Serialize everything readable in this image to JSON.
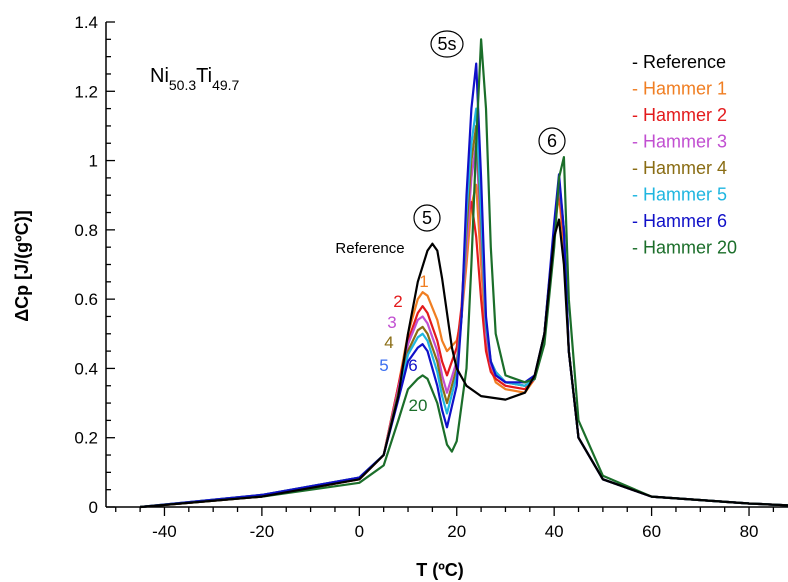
{
  "chart_data": {
    "type": "line",
    "title": "",
    "composition": {
      "main1": "Ni",
      "sub1": "50.3",
      "main2": "Ti",
      "sub2": "49.7"
    },
    "xlabel": "T (ºC)",
    "ylabel": "ΔCp  [J/(gºC)]",
    "xlim": [
      -52,
      88
    ],
    "ylim": [
      0,
      1.4
    ],
    "xticks": [
      -40,
      -20,
      0,
      20,
      40,
      60,
      80
    ],
    "yticks": [
      0,
      0.2,
      0.4,
      0.6,
      0.8,
      1,
      1.2,
      1.4
    ],
    "xtick_labels": [
      "-40",
      "-20",
      "0",
      "20",
      "40",
      "60",
      "80"
    ],
    "ytick_labels": [
      "0",
      "0.2",
      "0.4",
      "0.6",
      "0.8",
      "1",
      "1.2",
      "1.4"
    ],
    "grid": false,
    "legend_position": "top-right",
    "series": [
      {
        "name": "Reference",
        "color": "#000000",
        "x": [
          -45,
          -20,
          0,
          5,
          8,
          10,
          12,
          14,
          15,
          16,
          17,
          18,
          19,
          20,
          22,
          25,
          30,
          34,
          36,
          38,
          40,
          41,
          42,
          43,
          45,
          50,
          60,
          80,
          88
        ],
        "y": [
          0,
          0.03,
          0.08,
          0.15,
          0.32,
          0.5,
          0.65,
          0.74,
          0.76,
          0.74,
          0.66,
          0.56,
          0.46,
          0.4,
          0.35,
          0.32,
          0.31,
          0.33,
          0.38,
          0.5,
          0.78,
          0.83,
          0.7,
          0.45,
          0.2,
          0.08,
          0.03,
          0.01,
          0.005
        ]
      },
      {
        "name": "Hammer 1",
        "color": "#f07e22",
        "x": [
          -45,
          -20,
          0,
          5,
          8,
          10,
          12,
          13,
          14,
          16,
          17,
          18,
          20,
          21,
          22,
          23,
          24,
          25,
          26,
          27,
          28,
          30,
          34,
          36,
          38,
          40,
          41,
          42,
          43,
          45,
          50,
          60,
          80,
          88
        ],
        "y": [
          0,
          0.03,
          0.08,
          0.15,
          0.35,
          0.5,
          0.6,
          0.62,
          0.61,
          0.54,
          0.48,
          0.45,
          0.48,
          0.55,
          0.7,
          0.87,
          0.93,
          0.7,
          0.48,
          0.4,
          0.36,
          0.34,
          0.33,
          0.37,
          0.5,
          0.8,
          0.9,
          0.75,
          0.45,
          0.2,
          0.08,
          0.03,
          0.01,
          0.005
        ]
      },
      {
        "name": "Hammer 2",
        "color": "#e31a1c",
        "x": [
          -45,
          -20,
          0,
          5,
          8,
          10,
          12,
          13,
          14,
          16,
          17,
          18,
          20,
          21,
          22,
          23,
          24,
          25,
          26,
          27,
          28,
          30,
          34,
          36,
          38,
          40,
          41,
          42,
          43,
          45,
          50,
          60,
          80,
          88
        ],
        "y": [
          0,
          0.03,
          0.08,
          0.15,
          0.35,
          0.48,
          0.56,
          0.58,
          0.56,
          0.48,
          0.42,
          0.38,
          0.46,
          0.58,
          0.82,
          0.88,
          0.78,
          0.6,
          0.45,
          0.39,
          0.37,
          0.35,
          0.34,
          0.37,
          0.5,
          0.8,
          0.92,
          0.78,
          0.45,
          0.2,
          0.08,
          0.03,
          0.01,
          0.005
        ]
      },
      {
        "name": "Hammer 3",
        "color": "#c14fd1",
        "x": [
          -45,
          -20,
          0,
          5,
          8,
          10,
          12,
          13,
          14,
          16,
          17,
          18,
          20,
          21,
          22,
          23,
          24,
          25,
          26,
          27,
          28,
          30,
          34,
          36,
          38,
          40,
          41,
          42,
          43,
          45,
          50,
          60,
          80,
          88
        ],
        "y": [
          0,
          0.035,
          0.085,
          0.15,
          0.34,
          0.47,
          0.54,
          0.55,
          0.53,
          0.45,
          0.38,
          0.33,
          0.42,
          0.55,
          0.75,
          0.95,
          1.05,
          0.78,
          0.5,
          0.41,
          0.38,
          0.36,
          0.35,
          0.37,
          0.5,
          0.8,
          0.93,
          0.8,
          0.45,
          0.2,
          0.08,
          0.03,
          0.01,
          0.005
        ]
      },
      {
        "name": "Hammer 4",
        "color": "#8a6d14",
        "x": [
          -45,
          -20,
          0,
          5,
          8,
          10,
          12,
          13,
          14,
          16,
          17,
          18,
          20,
          21,
          22,
          23,
          24,
          25,
          26,
          27,
          28,
          30,
          34,
          36,
          38,
          40,
          41,
          42,
          43,
          45,
          50,
          60,
          80,
          88
        ],
        "y": [
          0,
          0.035,
          0.085,
          0.15,
          0.33,
          0.45,
          0.51,
          0.52,
          0.5,
          0.42,
          0.35,
          0.3,
          0.4,
          0.55,
          0.8,
          1.0,
          1.1,
          0.82,
          0.52,
          0.42,
          0.39,
          0.36,
          0.35,
          0.37,
          0.5,
          0.8,
          0.94,
          0.8,
          0.45,
          0.2,
          0.08,
          0.03,
          0.01,
          0.005
        ]
      },
      {
        "name": "Hammer 5",
        "color": "#1fb6e0",
        "x": [
          -45,
          -20,
          0,
          5,
          8,
          10,
          12,
          13,
          14,
          16,
          17,
          18,
          20,
          21,
          22,
          23,
          24,
          25,
          26,
          27,
          28,
          30,
          34,
          36,
          38,
          40,
          41,
          42,
          43,
          45,
          50,
          60,
          80,
          88
        ],
        "y": [
          0,
          0.035,
          0.085,
          0.15,
          0.32,
          0.44,
          0.49,
          0.5,
          0.48,
          0.39,
          0.32,
          0.27,
          0.38,
          0.55,
          0.85,
          1.05,
          1.15,
          0.85,
          0.53,
          0.42,
          0.39,
          0.36,
          0.35,
          0.37,
          0.5,
          0.8,
          0.95,
          0.8,
          0.45,
          0.2,
          0.08,
          0.03,
          0.01,
          0.005
        ]
      },
      {
        "name": "Hammer 6",
        "color": "#1010c8",
        "x": [
          -45,
          -20,
          0,
          5,
          8,
          10,
          12,
          13,
          14,
          16,
          17,
          18,
          20,
          21,
          22,
          23,
          24,
          25,
          26,
          27,
          28,
          30,
          34,
          36,
          38,
          40,
          41,
          42,
          43,
          45,
          50,
          60,
          80,
          88
        ],
        "y": [
          0,
          0.035,
          0.085,
          0.15,
          0.31,
          0.42,
          0.46,
          0.47,
          0.45,
          0.35,
          0.28,
          0.23,
          0.35,
          0.55,
          0.9,
          1.15,
          1.28,
          0.95,
          0.55,
          0.42,
          0.38,
          0.36,
          0.36,
          0.38,
          0.5,
          0.82,
          0.96,
          0.8,
          0.45,
          0.2,
          0.08,
          0.03,
          0.01,
          0.005
        ]
      },
      {
        "name": "Hammer 20",
        "color": "#1b6e2a",
        "x": [
          -45,
          -20,
          0,
          5,
          8,
          10,
          12,
          13,
          14,
          16,
          17,
          18,
          19,
          20,
          22,
          23,
          24,
          25,
          26,
          27,
          28,
          30,
          34,
          36,
          38,
          40,
          41,
          42,
          43,
          45,
          50,
          60,
          80,
          88
        ],
        "y": [
          0,
          0.03,
          0.07,
          0.12,
          0.25,
          0.34,
          0.37,
          0.38,
          0.37,
          0.3,
          0.24,
          0.18,
          0.16,
          0.19,
          0.4,
          0.7,
          1.05,
          1.35,
          1.15,
          0.75,
          0.5,
          0.38,
          0.36,
          0.37,
          0.47,
          0.75,
          0.95,
          1.01,
          0.6,
          0.25,
          0.09,
          0.03,
          0.01,
          0.005
        ]
      }
    ],
    "annotations": {
      "curve_labels": [
        {
          "text": "Reference",
          "color": "#000000"
        },
        {
          "text": "1",
          "color": "#f07e22"
        },
        {
          "text": "2",
          "color": "#e31a1c"
        },
        {
          "text": "3",
          "color": "#c14fd1"
        },
        {
          "text": "4",
          "color": "#8a6d14"
        },
        {
          "text": "5",
          "color": "#3b6ff0"
        },
        {
          "text": "6",
          "color": "#1010c8"
        },
        {
          "text": "20",
          "color": "#1b6e2a"
        }
      ],
      "peak_labels": [
        {
          "text": "5"
        },
        {
          "text": "5s"
        },
        {
          "text": "6"
        }
      ]
    }
  }
}
